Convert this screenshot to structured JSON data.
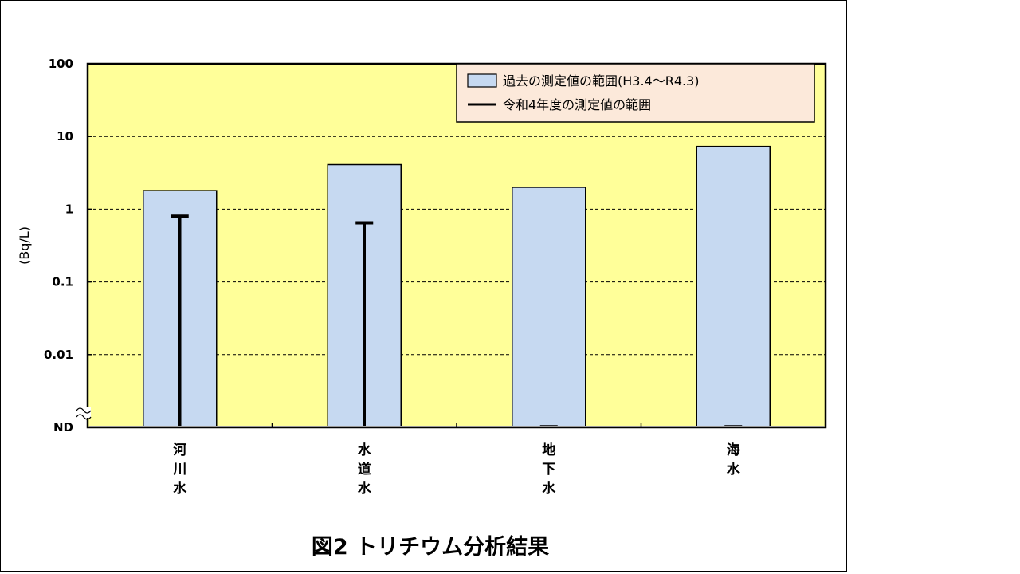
{
  "chart_data": {
    "type": "bar",
    "yscale": "log",
    "ylabel": "(Bq/L)",
    "yticks": [
      "ND",
      "0.01",
      "0.1",
      "1",
      "10",
      "100"
    ],
    "ylim": [
      0.001,
      100
    ],
    "grid": true,
    "legend_position": "top-right",
    "background_color": "#ffff99",
    "bar_color": "#c6d9f1",
    "legend_background": "#fce9da",
    "categories": [
      [
        "河",
        "川",
        "水"
      ],
      [
        "水",
        "道",
        "水"
      ],
      [
        "地",
        "下",
        "水"
      ],
      [
        "海",
        "水"
      ]
    ],
    "series": [
      {
        "name": "過去の測定値の範囲(H3.4～R4.3)",
        "kind": "range-bar",
        "low": [
          "ND",
          "ND",
          "ND",
          "ND"
        ],
        "high": [
          1.8,
          4.1,
          2.0,
          7.3
        ]
      },
      {
        "name": "令和4年度の測定値の範囲",
        "kind": "range-line",
        "low": [
          "ND",
          "ND",
          "ND",
          "ND"
        ],
        "high": [
          0.8,
          0.65,
          "ND",
          "ND"
        ]
      }
    ],
    "caption": "図2 トリチウム分析結果"
  }
}
